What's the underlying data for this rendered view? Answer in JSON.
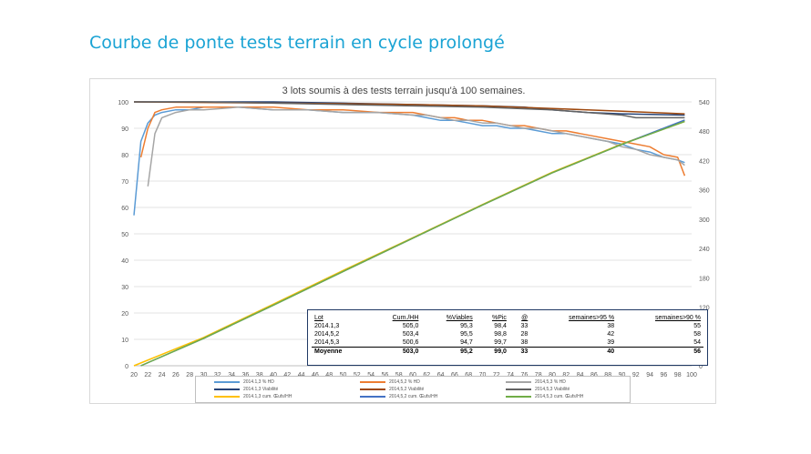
{
  "slide_title": "Courbe de ponte tests terrain en cycle prolongé",
  "chart_data": {
    "type": "line",
    "title": "3 lots soumis à des tests terrain jusqu'à 100 semaines.",
    "xlim": [
      20,
      100
    ],
    "x_ticks": [
      20,
      22,
      24,
      26,
      28,
      30,
      32,
      34,
      36,
      38,
      40,
      42,
      44,
      46,
      48,
      50,
      52,
      54,
      56,
      58,
      60,
      62,
      64,
      66,
      68,
      70,
      72,
      74,
      76,
      78,
      80,
      82,
      84,
      86,
      88,
      90,
      92,
      94,
      96,
      98,
      100
    ],
    "ylim_left": [
      0,
      100
    ],
    "y_ticks_left": [
      0,
      10,
      20,
      30,
      40,
      50,
      60,
      70,
      80,
      90,
      100
    ],
    "ylim_right": [
      0,
      540
    ],
    "y_ticks_right": [
      0,
      60,
      120,
      180,
      240,
      300,
      360,
      420,
      480,
      540
    ],
    "grid": true,
    "legend_position": "bottom",
    "series": [
      {
        "name": "2014.1,3 % HD",
        "color": "#5b9bd5",
        "axis": "left",
        "x": [
          20,
          21,
          22,
          23,
          24,
          26,
          28,
          30,
          35,
          40,
          45,
          50,
          55,
          60,
          62,
          64,
          66,
          68,
          70,
          72,
          74,
          76,
          78,
          80,
          82,
          84,
          86,
          88,
          90,
          92,
          94,
          96,
          98,
          99
        ],
        "values": [
          57,
          85,
          92,
          95,
          96,
          97,
          97,
          98,
          98,
          97,
          97,
          96,
          96,
          95,
          94,
          93,
          93,
          92,
          91,
          91,
          90,
          90,
          89,
          88,
          88,
          87,
          86,
          85,
          84,
          82,
          81,
          79,
          78,
          77
        ]
      },
      {
        "name": "2014,5,2 % HD",
        "color": "#ed7d31",
        "axis": "left",
        "x": [
          21,
          22,
          23,
          24,
          26,
          28,
          30,
          35,
          40,
          45,
          50,
          55,
          60,
          62,
          64,
          66,
          68,
          70,
          72,
          74,
          76,
          78,
          80,
          82,
          84,
          86,
          88,
          90,
          92,
          94,
          96,
          98,
          99
        ],
        "values": [
          79,
          90,
          96,
          97,
          98,
          98,
          98,
          98,
          98,
          97,
          97,
          96,
          96,
          95,
          94,
          94,
          93,
          93,
          92,
          91,
          91,
          90,
          89,
          89,
          88,
          87,
          86,
          85,
          84,
          83,
          80,
          79,
          72
        ]
      },
      {
        "name": "2014,5,3 % HD",
        "color": "#a5a5a5",
        "axis": "left",
        "x": [
          22,
          23,
          24,
          26,
          28,
          30,
          35,
          40,
          45,
          50,
          55,
          60,
          62,
          64,
          66,
          68,
          70,
          72,
          74,
          76,
          78,
          80,
          82,
          84,
          86,
          88,
          90,
          92,
          94,
          96,
          98,
          99
        ],
        "values": [
          68,
          88,
          94,
          96,
          97,
          97,
          98,
          97,
          97,
          96,
          96,
          95,
          95,
          94,
          93,
          93,
          92,
          92,
          91,
          90,
          90,
          89,
          88,
          87,
          86,
          85,
          83,
          82,
          80,
          79,
          78,
          76
        ]
      },
      {
        "name": "2014.1,3 Viabilité",
        "color": "#264478",
        "axis": "left",
        "x": [
          20,
          30,
          40,
          50,
          60,
          70,
          76,
          80,
          85,
          90,
          99
        ],
        "values": [
          100,
          100,
          100,
          99.5,
          99,
          98.5,
          98,
          97,
          96,
          95.5,
          95
        ]
      },
      {
        "name": "2014,5,2 Viabilité",
        "color": "#9e480e",
        "axis": "left",
        "x": [
          20,
          30,
          40,
          50,
          60,
          70,
          80,
          90,
          99
        ],
        "values": [
          100,
          99.8,
          99.6,
          99.3,
          99,
          98.5,
          97.5,
          96.5,
          95.5
        ]
      },
      {
        "name": "2014,5,3 Viabilité",
        "color": "#636363",
        "axis": "left",
        "x": [
          20,
          30,
          40,
          50,
          60,
          70,
          80,
          85,
          90,
          92,
          99
        ],
        "values": [
          100,
          100,
          99.5,
          99,
          98.5,
          98,
          97,
          96,
          95,
          94,
          94
        ]
      },
      {
        "name": "2014.1,3 cum. Œufs/HH",
        "color": "#ffc000",
        "axis": "right",
        "x": [
          20,
          30,
          40,
          50,
          60,
          70,
          80,
          90,
          99
        ],
        "values": [
          0,
          58,
          126,
          195,
          262,
          330,
          396,
          454,
          500
        ]
      },
      {
        "name": "2014,5,2 cum. Œufs/HH",
        "color": "#4472c4",
        "axis": "right",
        "x": [
          21,
          30,
          40,
          50,
          60,
          70,
          80,
          90,
          99
        ],
        "values": [
          0,
          56,
          124,
          193,
          261,
          329,
          395,
          453,
          503
        ]
      },
      {
        "name": "2014,5,3 cum. Œufs/HH",
        "color": "#70ad47",
        "axis": "right",
        "x": [
          21,
          30,
          40,
          50,
          60,
          70,
          80,
          90,
          99
        ],
        "values": [
          0,
          56,
          124,
          193,
          261,
          329,
          395,
          453,
          500
        ]
      }
    ]
  },
  "stats_table": {
    "headers": [
      "Lot",
      "Cum./HH",
      "%Viables",
      "%Pic",
      "@",
      "semaines>95 %",
      "semaines>90 %"
    ],
    "rows": [
      [
        "2014.1,3",
        "505,0",
        "95,3",
        "98,4",
        "33",
        "38",
        "55"
      ],
      [
        "2014,5,2",
        "503,4",
        "95,5",
        "98,8",
        "28",
        "42",
        "58"
      ],
      [
        "2014,5,3",
        "500,6",
        "94,7",
        "99,7",
        "38",
        "39",
        "54"
      ]
    ],
    "average": [
      "Moyenne",
      "503,0",
      "95,2",
      "99,0",
      "33",
      "40",
      "56"
    ]
  }
}
